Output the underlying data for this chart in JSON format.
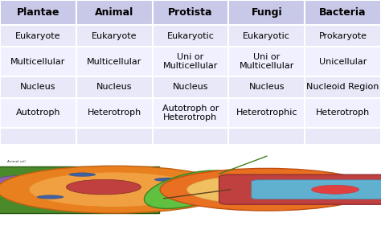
{
  "headers": [
    "Plantae",
    "Animal",
    "Protista",
    "Fungi",
    "Bacteria"
  ],
  "rows": [
    [
      "Eukaryote",
      "Eukaryote",
      "Eukaryotic",
      "Eukaryotic",
      "Prokaryote"
    ],
    [
      "Multicellular",
      "Multicellular",
      "Uni or\nMulticellular",
      "Uni or\nMulticellular",
      "Unicellular"
    ],
    [
      "Nucleus",
      "Nucleus",
      "Nucleus",
      "Nucleus",
      "Nucleoid Region"
    ],
    [
      "Autotroph",
      "Heterotroph",
      "Autotroph or\nHeterotroph",
      "Heterotrophic",
      "Heterotroph"
    ]
  ],
  "header_bg": "#c8c8e8",
  "row_bg_odd": "#e8e8f8",
  "row_bg_even": "#f0f0ff",
  "border_color": "#ffffff",
  "text_color": "#000000",
  "header_fontsize": 9,
  "cell_fontsize": 8,
  "fig_width": 4.74,
  "fig_height": 2.91,
  "bottom_row_bg": "#e8e8f8"
}
